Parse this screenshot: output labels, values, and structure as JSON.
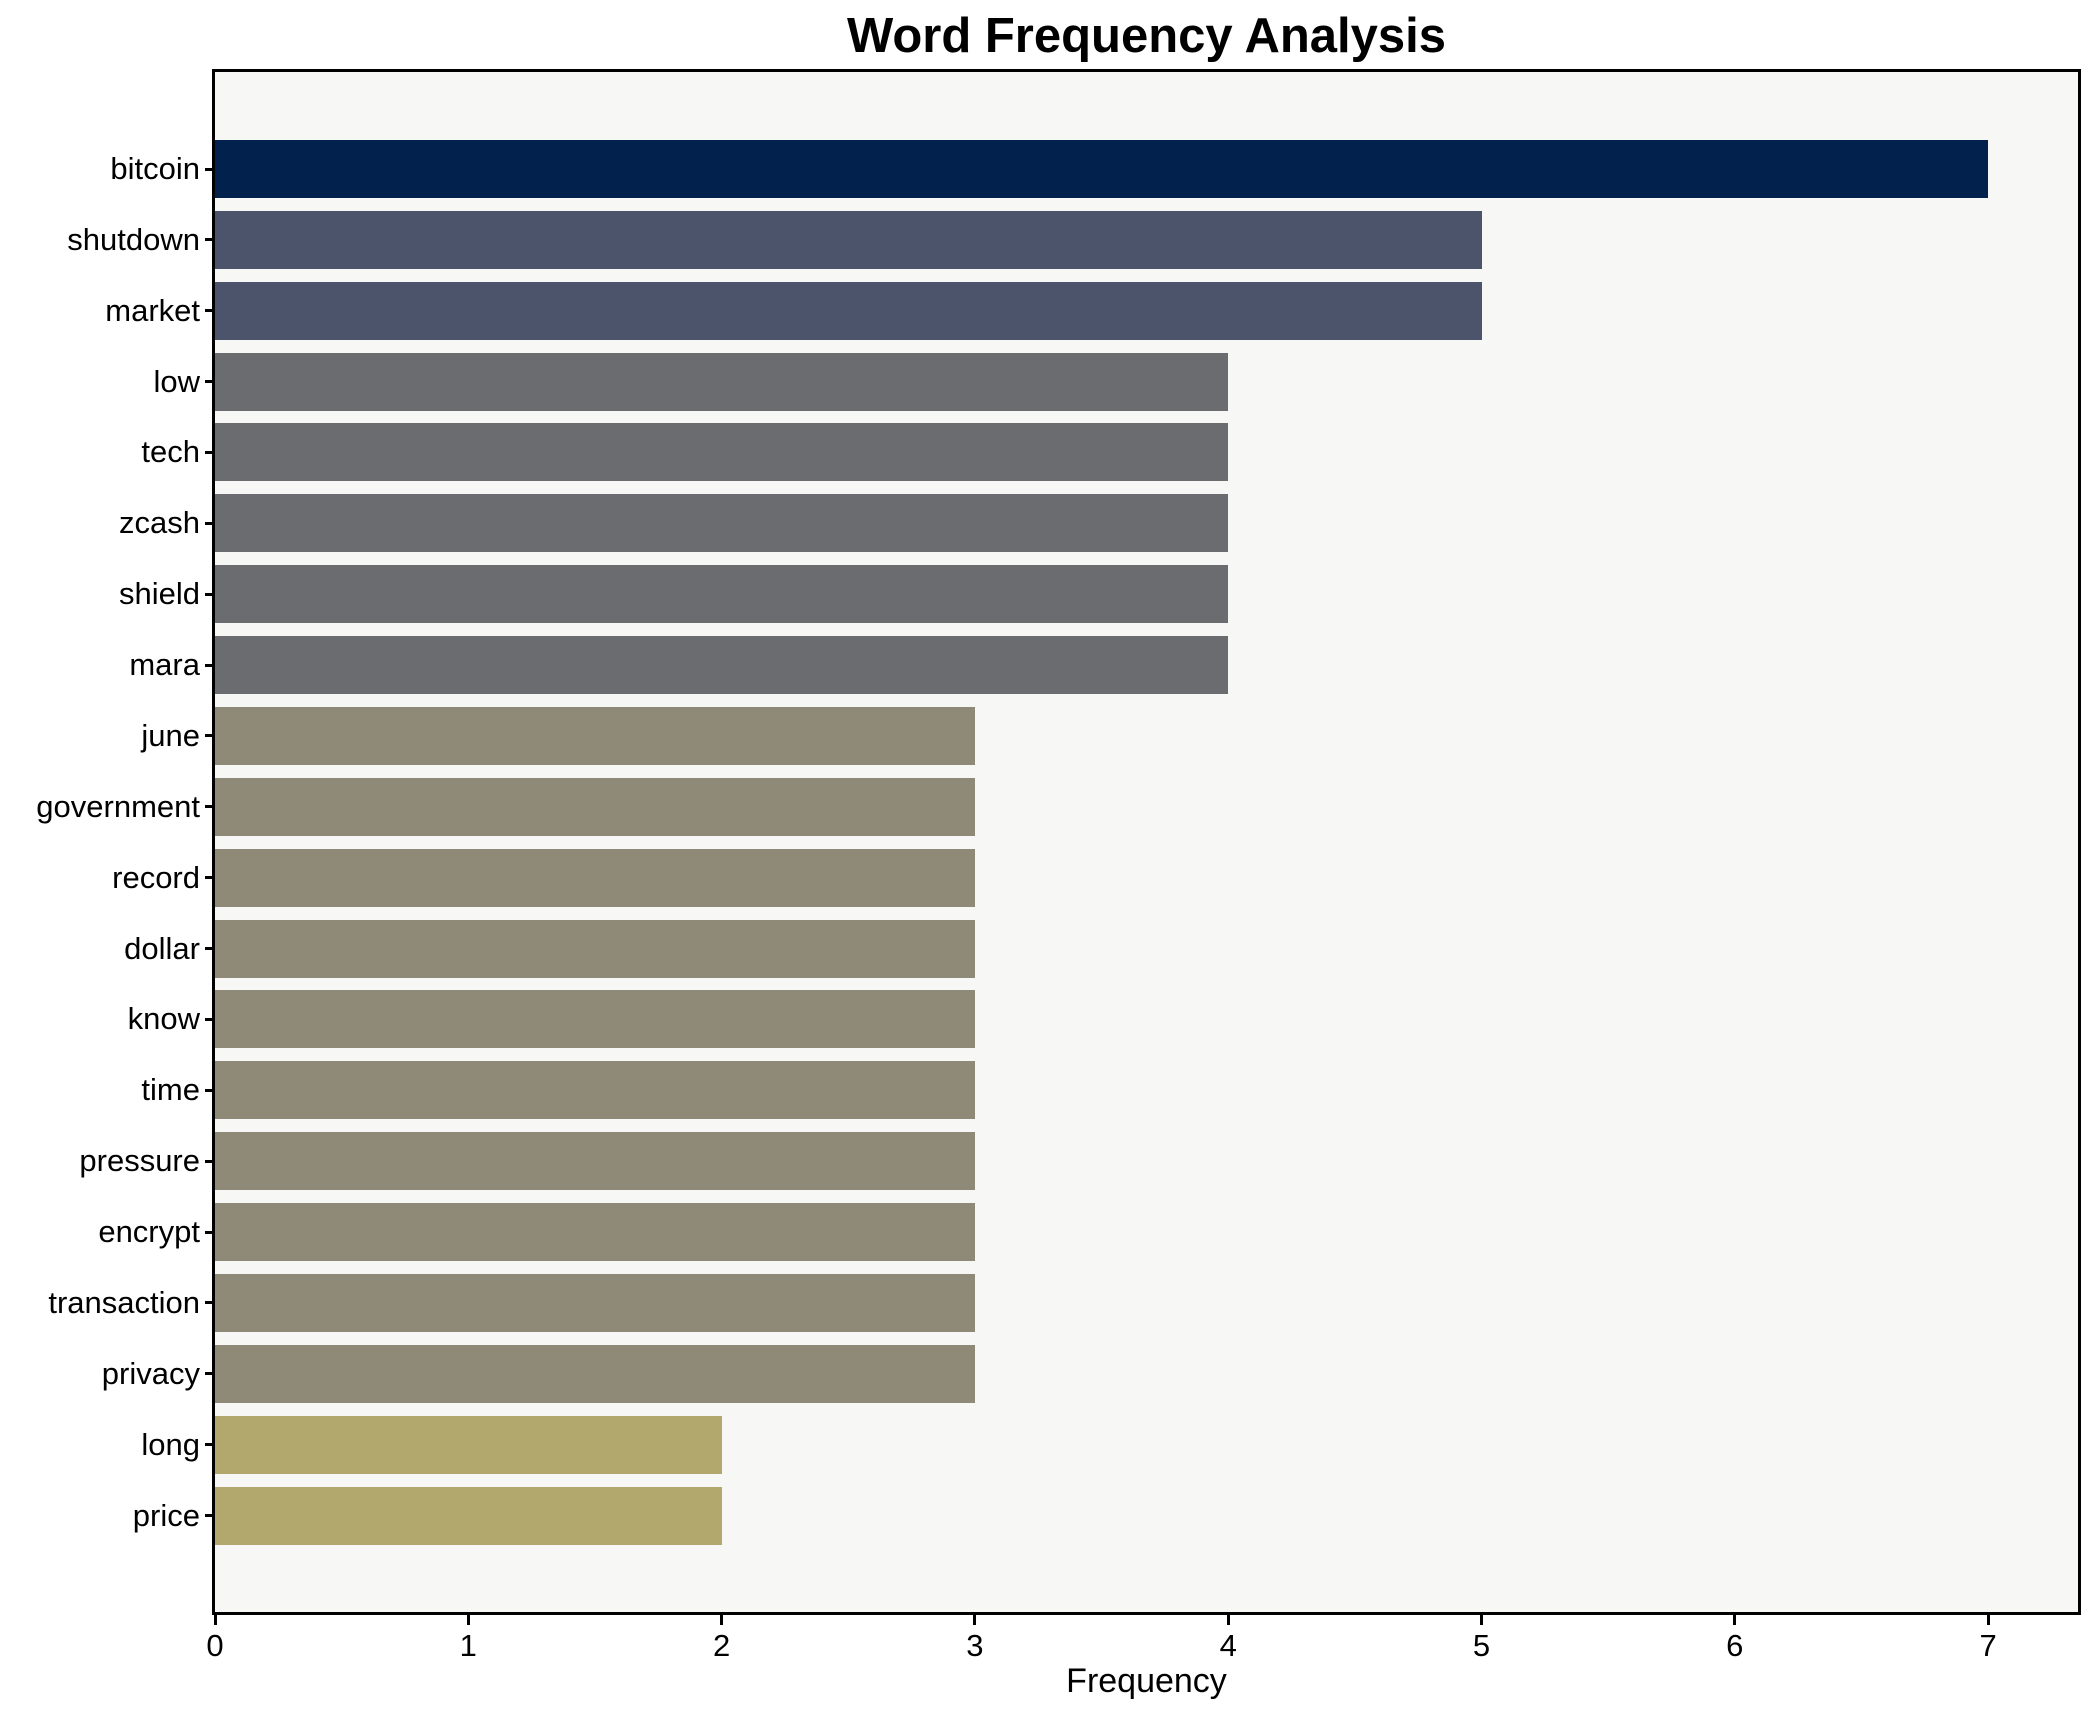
{
  "chart_data": {
    "type": "bar",
    "orientation": "horizontal",
    "title": "Word Frequency Analysis",
    "xlabel": "Frequency",
    "ylabel": "",
    "grid": false,
    "legend": false,
    "xlim": [
      0,
      7.35
    ],
    "xticks": [
      0,
      1,
      2,
      3,
      4,
      5,
      6,
      7
    ],
    "categories": [
      "bitcoin",
      "shutdown",
      "market",
      "low",
      "tech",
      "zcash",
      "shield",
      "mara",
      "june",
      "government",
      "record",
      "dollar",
      "know",
      "time",
      "pressure",
      "encrypt",
      "transaction",
      "privacy",
      "long",
      "price"
    ],
    "values": [
      7,
      5,
      5,
      4,
      4,
      4,
      4,
      4,
      3,
      3,
      3,
      3,
      3,
      3,
      3,
      3,
      3,
      3,
      2,
      2
    ],
    "bar_colors": [
      "#02224d",
      "#4c546c",
      "#4c546c",
      "#6a6c70",
      "#6a6c70",
      "#6a6c70",
      "#6a6c70",
      "#6a6c70",
      "#8f8a78",
      "#8f8a78",
      "#8f8a78",
      "#8f8a78",
      "#8f8a78",
      "#8f8a78",
      "#8f8a78",
      "#8f8a78",
      "#8f8a78",
      "#8f8a78",
      "#b2a76d",
      "#b2a76d"
    ],
    "colors": {
      "figure_background": "#ffffff",
      "plot_background": "#f7f7f5",
      "spine": "#000000",
      "text": "#000000",
      "value_7": "#02224d",
      "value_5": "#4c546c",
      "value_4": "#6a6c70",
      "value_3": "#8f8a78",
      "value_2": "#b2a76d"
    }
  }
}
